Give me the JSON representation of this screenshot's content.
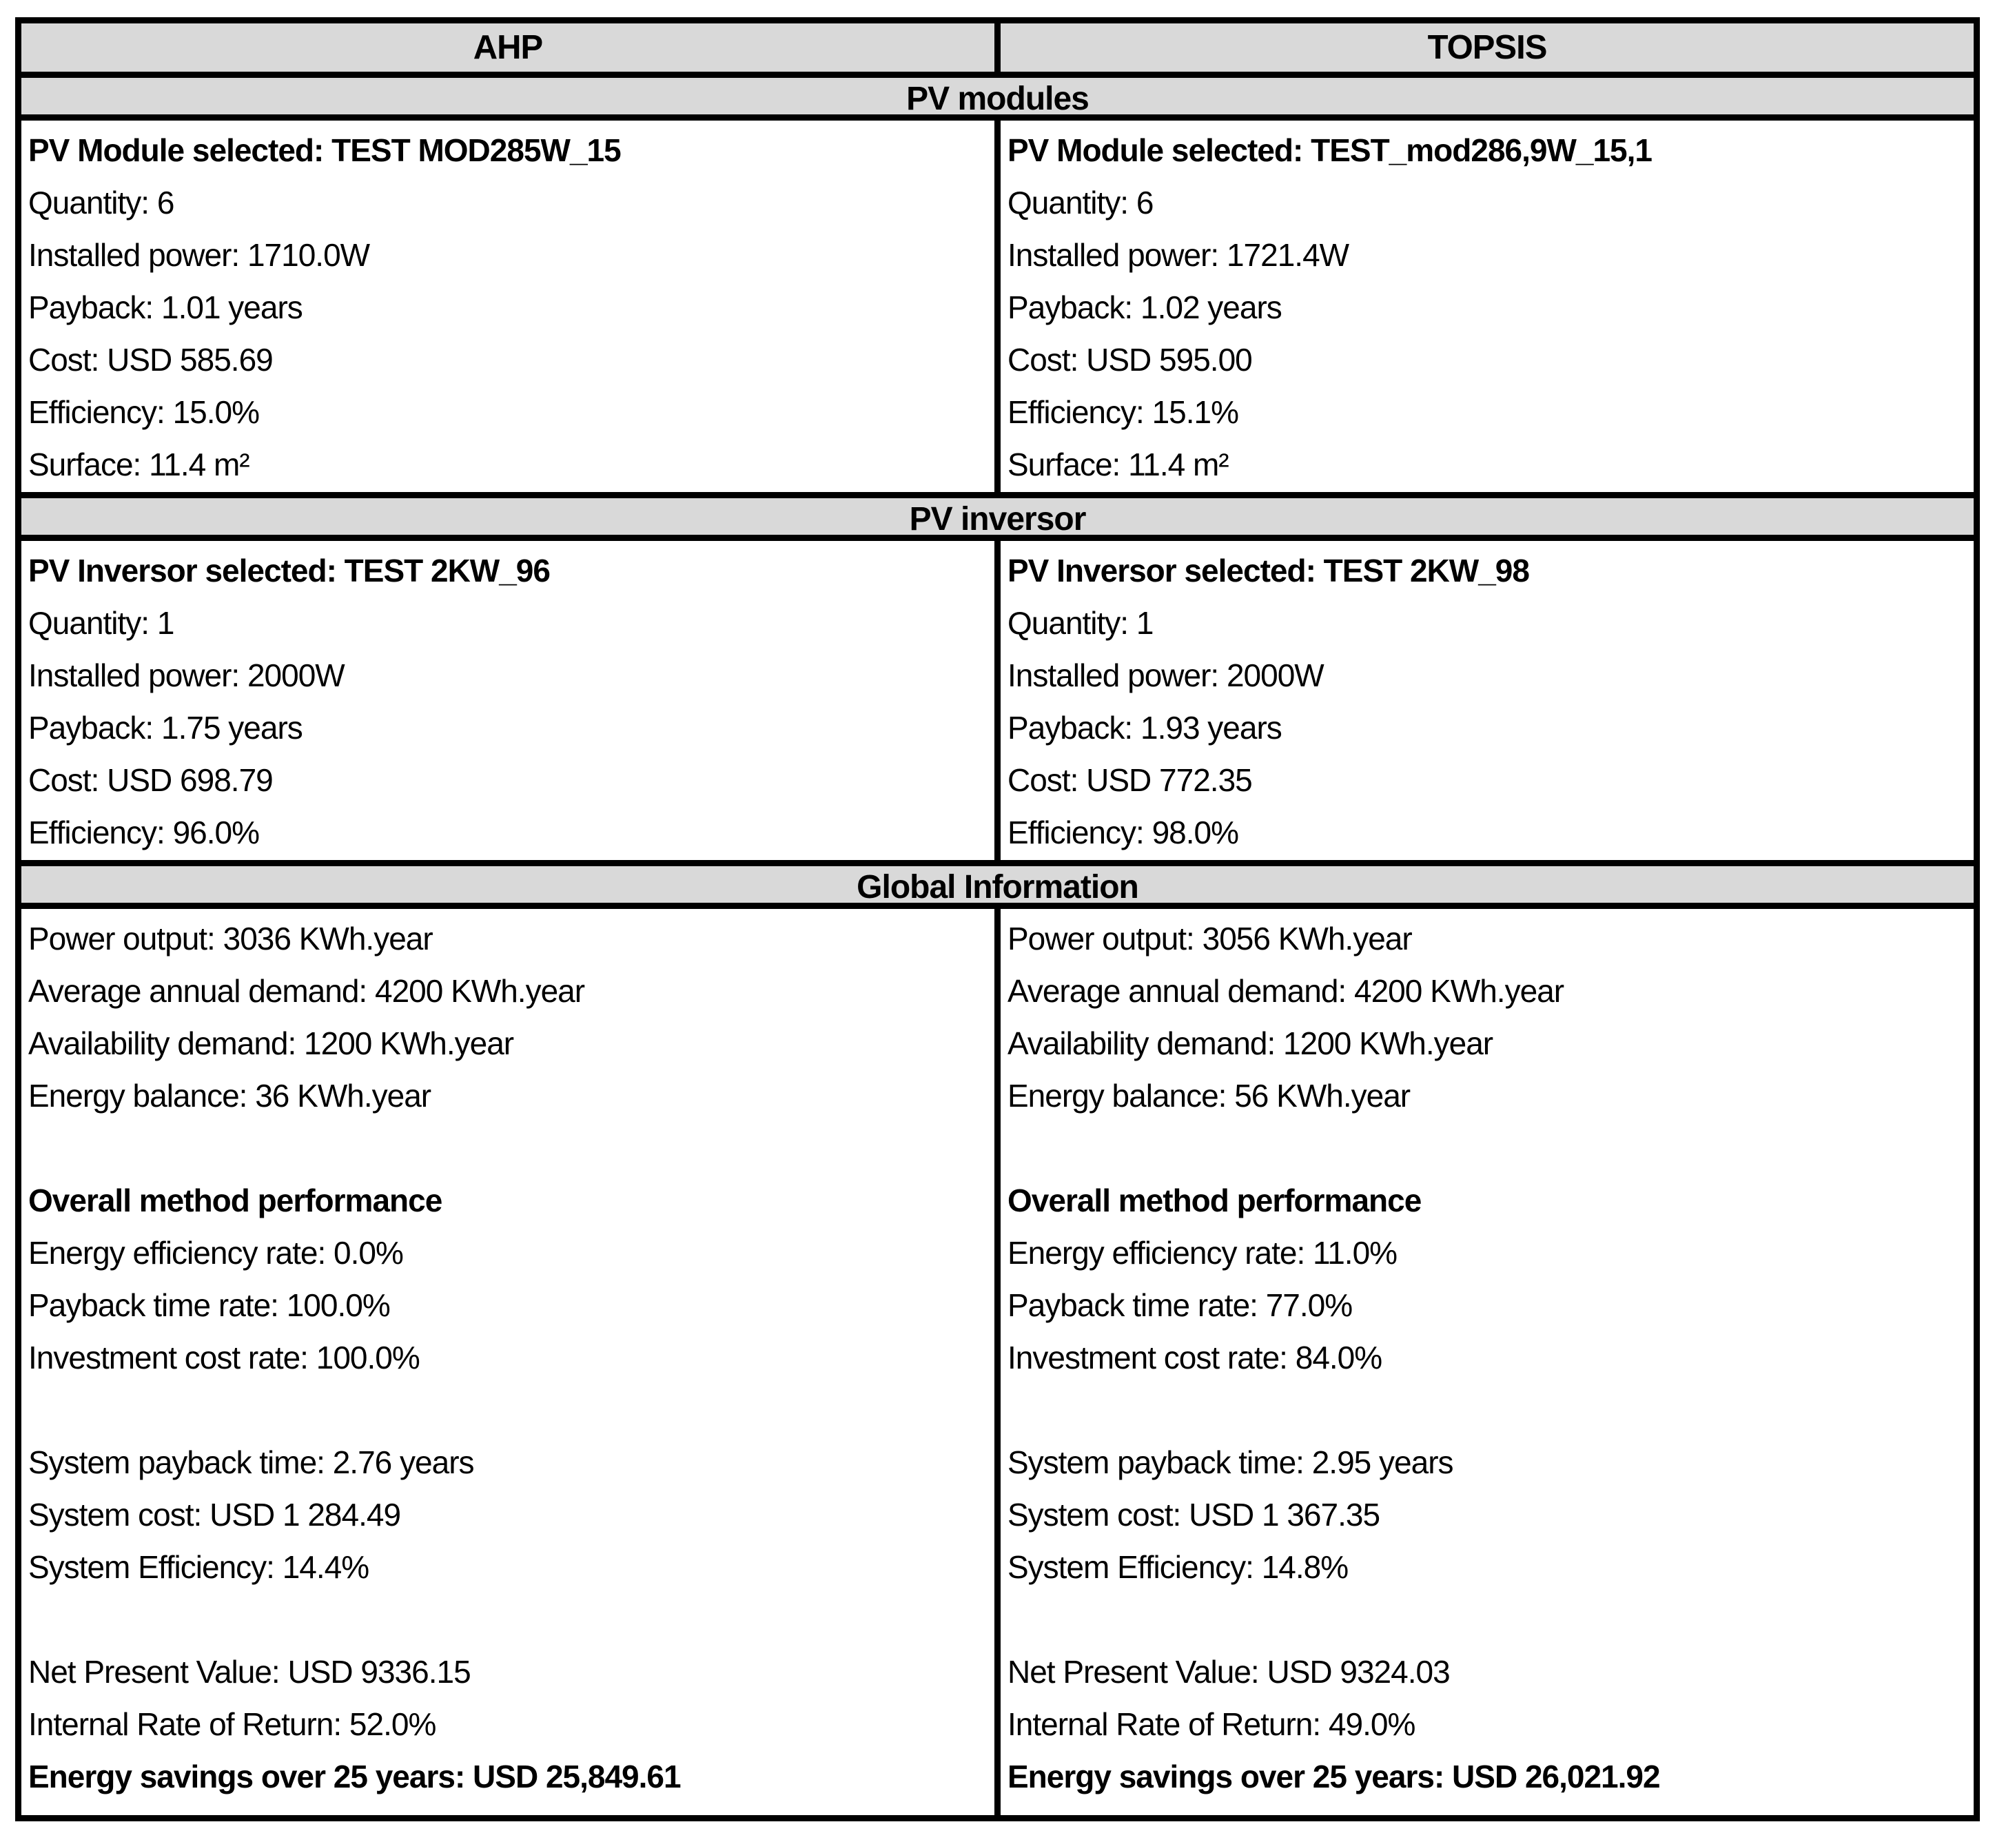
{
  "colors": {
    "header_bg": "#d9d9d9",
    "border": "#000000",
    "text": "#000000",
    "cell_bg": "#ffffff"
  },
  "columns": {
    "ahp": "AHP",
    "topsis": "TOPSIS"
  },
  "sections": [
    {
      "title": "PV modules",
      "ahp": {
        "lines": [
          "PV Module selected: TEST MOD285W_15",
          "Quantity: 6",
          "Installed power: 1710.0W",
          "Payback: 1.01 years",
          "Cost: USD 585.69",
          "Efficiency: 15.0%",
          "Surface: 11.4 m²"
        ]
      },
      "topsis": {
        "lines": [
          "PV Module selected: TEST_mod286,9W_15,1",
          "Quantity: 6",
          "Installed power: 1721.4W",
          "Payback: 1.02 years",
          "Cost: USD 595.00",
          "Efficiency: 15.1%",
          "Surface: 11.4 m²"
        ]
      }
    },
    {
      "title": "PV inversor",
      "ahp": {
        "lines": [
          "PV Inversor selected: TEST 2KW_96",
          "Quantity: 1",
          "Installed power: 2000W",
          "Payback: 1.75 years",
          "Cost: USD 698.79",
          "Efficiency: 96.0%"
        ]
      },
      "topsis": {
        "lines": [
          "PV Inversor selected: TEST 2KW_98",
          "Quantity: 1",
          "Installed power: 2000W",
          "Payback: 1.93 years",
          "Cost: USD 772.35",
          "Efficiency: 98.0%"
        ]
      }
    },
    {
      "title": "Global Information",
      "ahp": {
        "lines": [
          "Power output: 3036 KWh.year",
          "Average annual demand: 4200 KWh.year",
          "Availability demand: 1200 KWh.year",
          "Energy balance: 36 KWh.year",
          "",
          "Overall method performance",
          "Energy efficiency rate: 0.0%",
          "Payback time rate: 100.0%",
          "Investment cost rate: 100.0%",
          "",
          "System payback time: 2.76 years",
          "System cost: USD 1 284.49",
          "System Efficiency: 14.4%",
          "",
          "Net Present Value: USD 9336.15",
          "Internal Rate of Return: 52.0%",
          "Energy savings over 25 years: USD 25,849.61"
        ]
      },
      "topsis": {
        "lines": [
          "Power output: 3056 KWh.year",
          "Average annual demand: 4200 KWh.year",
          "Availability demand: 1200 KWh.year",
          "Energy balance: 56 KWh.year",
          "",
          "Overall method performance",
          "Energy efficiency rate: 11.0%",
          "Payback time rate: 77.0%",
          "Investment cost rate: 84.0%",
          "",
          "System payback time: 2.95 years",
          "System cost: USD 1 367.35",
          "System Efficiency: 14.8%",
          "",
          "Net Present Value: USD 9324.03",
          "Internal Rate of Return: 49.0%",
          "Energy savings over 25 years: USD 26,021.92"
        ]
      }
    }
  ]
}
